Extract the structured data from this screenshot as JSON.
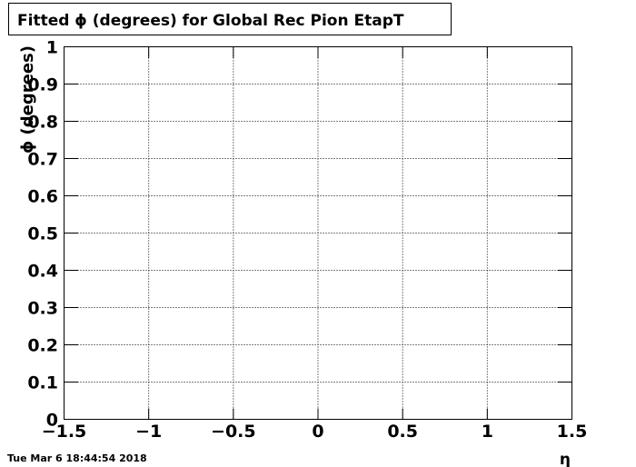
{
  "chart_data": {
    "type": "scatter",
    "title": "Fitted ϕ (degrees) for Global Rec Pion EtapT",
    "x_label": "η",
    "y_label": "ϕ (degrees)",
    "timestamp": "Tue Mar  6 18:44:54 2018",
    "series": [],
    "xlim": [
      -1.5,
      1.5
    ],
    "xticks": [
      {
        "value": -1.5,
        "label": "−1.5"
      },
      {
        "value": -1,
        "label": "−1"
      },
      {
        "value": -0.5,
        "label": "−0.5"
      },
      0,
      0.5,
      1,
      1.5
    ],
    "ylim": [
      0,
      1
    ],
    "yticks": [
      0,
      0.1,
      0.2,
      0.3,
      0.4,
      0.5,
      0.6,
      0.7,
      0.8,
      0.9,
      1
    ],
    "grid": true
  }
}
